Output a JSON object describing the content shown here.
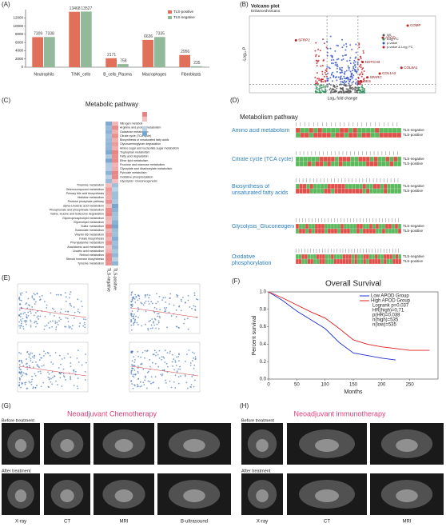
{
  "figure_labels": [
    "(A)",
    "(B)",
    "(C)",
    "(D)",
    "(E)",
    "(F)",
    "(G)",
    "(H)"
  ],
  "chart_data": [
    {
      "type": "bar",
      "categories": [
        "Neutrophils",
        "T/NK_cells",
        "B_cells_Plasma",
        "Macrophages",
        "Fibroblasts"
      ],
      "series": [
        {
          "name": "TLS-positive",
          "color": "#e0705a",
          "values": [
            7309,
            13468,
            2171,
            6636,
            2956
          ]
        },
        {
          "name": "TLS-negative",
          "color": "#93b99b",
          "values": [
            7338,
            13527,
            758,
            7335,
            235
          ]
        }
      ],
      "ylim": [
        0,
        14000
      ],
      "yticks": [
        0,
        2000,
        4000,
        6000,
        8000,
        10000,
        12000
      ]
    },
    {
      "type": "scatter",
      "title": "Volcano plot",
      "subtitle": "EnhancedVolcano",
      "xlabel": "Log₂ fold change",
      "ylabel": "-Log₁₀ P",
      "legend": [
        {
          "name": "NS",
          "color": "#555555"
        },
        {
          "name": "Log₂ FC",
          "color": "#2e8b57"
        },
        {
          "name": "p-value",
          "color": "#3050c8"
        },
        {
          "name": "p-value & Log₂ FC",
          "color": "#c0202a"
        }
      ],
      "points": [
        {
          "label": "COMP",
          "x": 4.2,
          "y": 10.5
        },
        {
          "label": "APOD",
          "x": 2.6,
          "y": 8.6
        },
        {
          "label": "NOTCH3",
          "x": 1.3,
          "y": 4.8
        },
        {
          "label": "COL8A1",
          "x": 3.8,
          "y": 3.9
        },
        {
          "label": "COL1A2",
          "x": 2.4,
          "y": 3.0
        },
        {
          "label": "SPARC",
          "x": 1.6,
          "y": 2.4
        },
        {
          "label": "DES",
          "x": 1.2,
          "y": 1.8
        },
        {
          "label": "SFRP2",
          "x": -3.0,
          "y": 8.2
        }
      ],
      "xlim": [
        -6,
        6
      ],
      "ylim": [
        0,
        12
      ]
    },
    {
      "type": "line",
      "title": "Overall Survival",
      "xlabel": "Months",
      "ylabel": "Percent survival",
      "x": [
        0,
        25,
        50,
        75,
        100,
        125,
        150,
        175,
        200,
        225,
        250,
        285
      ],
      "series": [
        {
          "name": "Low APOD Group",
          "color": "#2030d0",
          "values": [
            1.0,
            0.9,
            0.78,
            0.68,
            0.58,
            0.42,
            0.3,
            0.27,
            0.24,
            0.22,
            null,
            null
          ]
        },
        {
          "name": "High APOD Group",
          "color": "#e02020",
          "values": [
            1.0,
            0.93,
            0.85,
            0.77,
            0.7,
            0.58,
            0.45,
            0.4,
            0.37,
            0.35,
            0.33,
            0.33
          ]
        }
      ],
      "annotations": [
        "Logrank p=0.037",
        "HR(high)=0.71",
        "p(HR)=0.038",
        "n(high)=535",
        "n(low)=535"
      ],
      "xlim": [
        0,
        300
      ],
      "xticks": [
        0,
        50,
        100,
        150,
        200,
        250
      ],
      "ylim": [
        0,
        1
      ],
      "yticks": [
        {
          "value": 0,
          "label": "0.0"
        },
        0.2,
        0.4,
        0.6,
        0.8,
        {
          "value": 1,
          "label": "1.0"
        }
      ]
    }
  ],
  "panel_c": {
    "title": "Metabolic pathway",
    "columns": [
      "TLS-negative",
      "TLS-positive"
    ],
    "upper_pathways": [
      "Nitrogen metabolism",
      "Arginine and proline metabolism",
      "Galactose metabolism",
      "Citrate cycle (TCA cycle)",
      "Biosynthesis of unsaturated fatty acids",
      "Glycosaminoglycan degradation",
      "Amino sugar and nucleotide sugar metabolism",
      "Tryptophan metabolism",
      "Fatty acid degradation",
      "Ether lipid metabolism",
      "Fructose and mannose metabolism",
      "Glyoxylate and dicarboxylate metabolism",
      "Pyruvate metabolism",
      "Oxidative phosphorylation",
      "Glycolysis / Gluconeogenesis"
    ],
    "lower_pathways": [
      "Thiamine metabolism",
      "Selenocompound metabolism",
      "Primary bile acid biosynthesis",
      "Histidine metabolism",
      "Pentose phosphate pathway",
      "alpha-Linolenic acid metabolism",
      "Phosphonate and phosphinate metabolism",
      "Valine, leucine and isoleucine degradation",
      "Glycerophospholipid metabolism",
      "Glycerolipid metabolism",
      "Sulfur metabolism",
      "Butanoate metabolism",
      "Vitamin B6 metabolism",
      "Folate biosynthesis",
      "Phenylalanine metabolism",
      "Arachidonic acid metabolism",
      "Linoleic acid metabolism",
      "Retinol metabolism",
      "Steroid hormone biosynthesis",
      "Tyrosine metabolism"
    ]
  },
  "panel_d": {
    "title": "Metabolism pathway",
    "pathways": [
      {
        "name": "Amino acid metabolism",
        "rows": [
          "TLS-negative",
          "TLS-positive"
        ]
      },
      {
        "name": "Citrate cycle (TCA cycle)",
        "rows": [
          "TLS-negative",
          "TLS-positive"
        ]
      },
      {
        "name": "Biosynthesis of unsaturated fatty acids",
        "rows": [
          "TLS-negative",
          "TLS-positive"
        ]
      },
      {
        "name": "Glycolysis_Gluconeogenesis",
        "rows": [
          "TLS-negative",
          "TLS-positive"
        ]
      },
      {
        "name": "Oxidative phosphorylation",
        "rows": [
          "TLS-negative",
          "TLS-positive"
        ]
      }
    ]
  },
  "panel_g": {
    "title": "Neoadjuvant Chemotherapy",
    "stages": [
      "Before treatment",
      "After treatment"
    ],
    "modalities": [
      "X-ray",
      "CT",
      "MRI",
      "B-ultrasound"
    ]
  },
  "panel_h": {
    "title": "Neoadjuvant immunotherapy",
    "stages": [
      "Before treatment",
      "After treatment"
    ],
    "modalities": [
      "X-ray",
      "CT",
      "MRI"
    ]
  }
}
